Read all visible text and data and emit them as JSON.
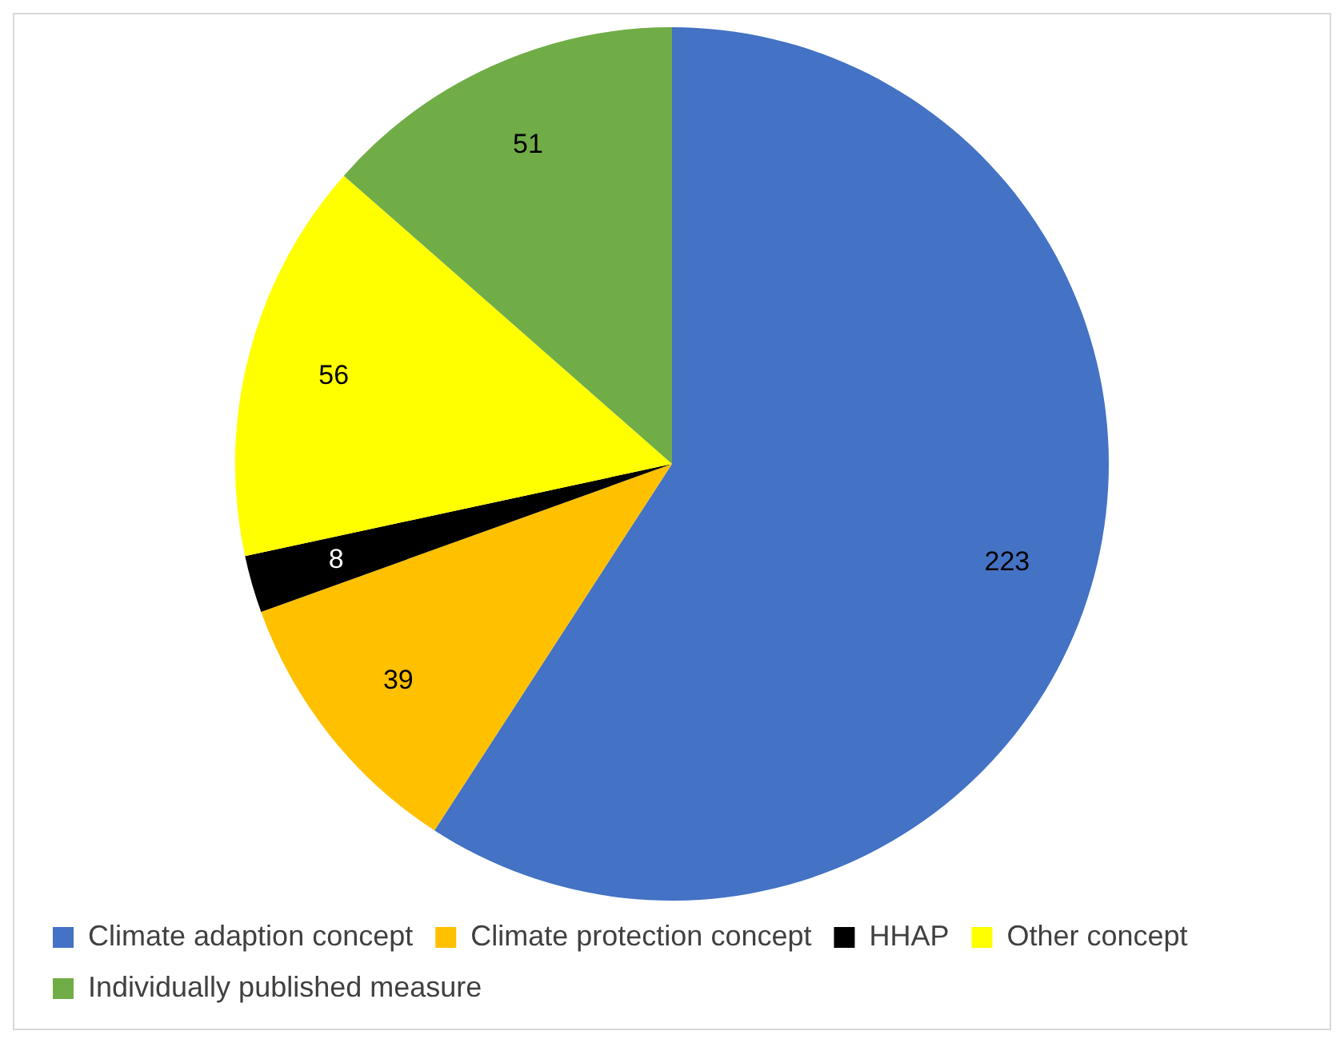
{
  "chart_data": {
    "type": "pie",
    "categories": [
      "Climate adaption concept",
      "Climate protection concept",
      "HHAP",
      "Other concept",
      "Individually published measure"
    ],
    "values": [
      223,
      39,
      8,
      56,
      51
    ],
    "colors": [
      "#4472c4",
      "#ffc000",
      "#000000",
      "#ffff00",
      "#70ad47"
    ],
    "data_labels": true,
    "legend": "bottom"
  }
}
